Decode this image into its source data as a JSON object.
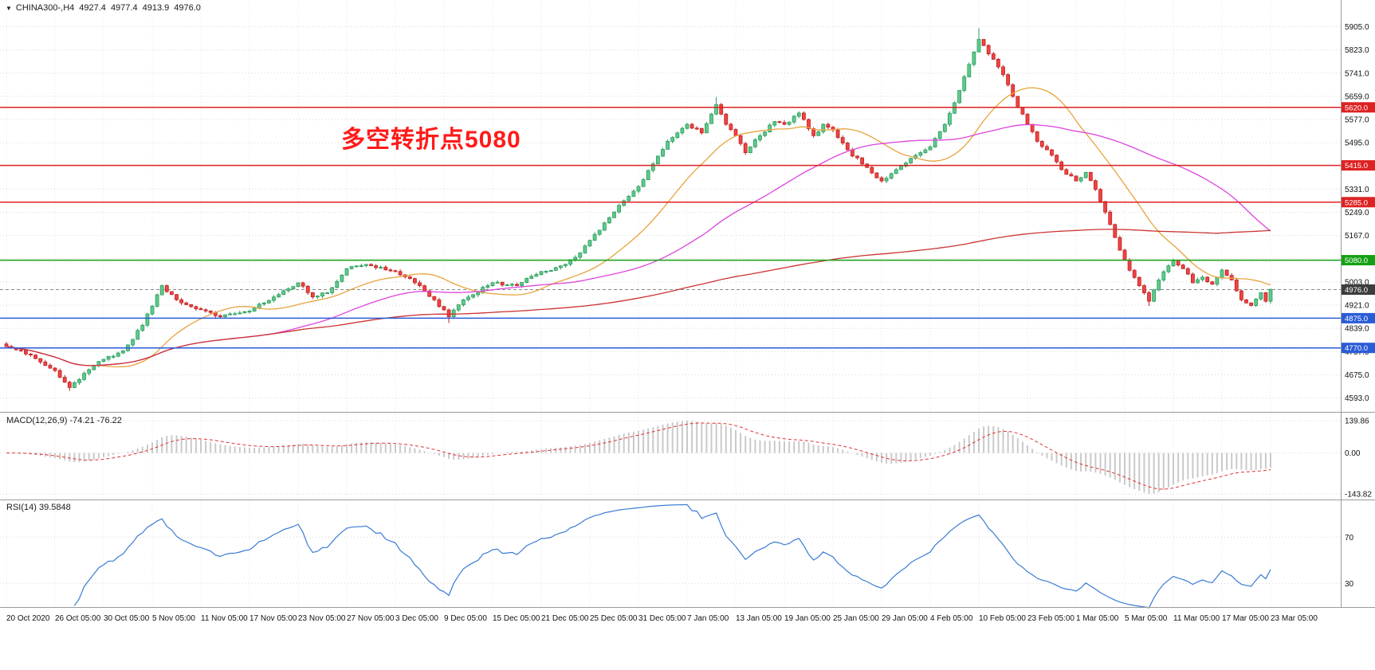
{
  "header": {
    "dropdown_icon": "▼",
    "symbol": "CHINA300-,H4",
    "open": "4927.4",
    "high": "4977.4",
    "low": "4913.9",
    "close": "4976.0"
  },
  "annotation": {
    "text": "多空转折点5080",
    "color": "#ff1a1a"
  },
  "chart_data": {
    "type": "candlestick",
    "symbol": "CHINA300-",
    "timeframe": "H4",
    "ohlc_current": {
      "open": 4927.4,
      "high": 4977.4,
      "low": 4913.9,
      "close": 4976.0
    },
    "y_axis": {
      "min": 4558,
      "max": 5960,
      "ticks": [
        "5905.0",
        "5823.0",
        "5741.0",
        "5659.0",
        "5577.0",
        "5495.0",
        "5413.0",
        "5331.0",
        "5249.0",
        "5167.0",
        "5085.0",
        "5003.0",
        "4921.0",
        "4839.0",
        "4757.0",
        "4675.0",
        "4593.0"
      ]
    },
    "x_axis": {
      "labels": [
        "20 Oct 2020",
        "26 Oct 05:00",
        "30 Oct 05:00",
        "5 Nov 05:00",
        "11 Nov 05:00",
        "17 Nov 05:00",
        "23 Nov 05:00",
        "27 Nov 05:00",
        "3 Dec 05:00",
        "9 Dec 05:00",
        "15 Dec 05:00",
        "21 Dec 05:00",
        "25 Dec 05:00",
        "31 Dec 05:00",
        "7 Jan 05:00",
        "13 Jan 05:00",
        "19 Jan 05:00",
        "25 Jan 05:00",
        "29 Jan 05:00",
        "4 Feb 05:00",
        "10 Feb 05:00",
        "23 Feb 05:00",
        "1 Mar 05:00",
        "5 Mar 05:00",
        "11 Mar 05:00",
        "17 Mar 05:00",
        "23 Mar 05:00"
      ]
    },
    "close_path": [
      [
        0,
        4775
      ],
      [
        5,
        4745
      ],
      [
        10,
        4690
      ],
      [
        13,
        4630
      ],
      [
        16,
        4680
      ],
      [
        20,
        4730
      ],
      [
        24,
        4760
      ],
      [
        28,
        4850
      ],
      [
        32,
        4990
      ],
      [
        35,
        4940
      ],
      [
        40,
        4905
      ],
      [
        44,
        4880
      ],
      [
        50,
        4900
      ],
      [
        55,
        4950
      ],
      [
        60,
        5000
      ],
      [
        63,
        4950
      ],
      [
        66,
        4965
      ],
      [
        70,
        5050
      ],
      [
        74,
        5065
      ],
      [
        80,
        5040
      ],
      [
        85,
        4990
      ],
      [
        88,
        4940
      ],
      [
        91,
        4880
      ],
      [
        94,
        4940
      ],
      [
        100,
        5000
      ],
      [
        105,
        4990
      ],
      [
        110,
        5040
      ],
      [
        114,
        5060
      ],
      [
        117,
        5090
      ],
      [
        120,
        5150
      ],
      [
        124,
        5230
      ],
      [
        127,
        5290
      ],
      [
        130,
        5340
      ],
      [
        133,
        5420
      ],
      [
        136,
        5500
      ],
      [
        140,
        5560
      ],
      [
        143,
        5530
      ],
      [
        146,
        5630
      ],
      [
        148,
        5560
      ],
      [
        150,
        5520
      ],
      [
        152,
        5460
      ],
      [
        155,
        5520
      ],
      [
        158,
        5570
      ],
      [
        160,
        5560
      ],
      [
        163,
        5600
      ],
      [
        166,
        5520
      ],
      [
        168,
        5560
      ],
      [
        170,
        5540
      ],
      [
        173,
        5470
      ],
      [
        176,
        5420
      ],
      [
        180,
        5360
      ],
      [
        183,
        5400
      ],
      [
        186,
        5440
      ],
      [
        190,
        5480
      ],
      [
        193,
        5560
      ],
      [
        196,
        5680
      ],
      [
        200,
        5860
      ],
      [
        203,
        5790
      ],
      [
        206,
        5700
      ],
      [
        208,
        5620
      ],
      [
        210,
        5560
      ],
      [
        212,
        5500
      ],
      [
        214,
        5470
      ],
      [
        217,
        5400
      ],
      [
        220,
        5360
      ],
      [
        222,
        5390
      ],
      [
        224,
        5330
      ],
      [
        226,
        5250
      ],
      [
        228,
        5160
      ],
      [
        230,
        5080
      ],
      [
        233,
        4990
      ],
      [
        235,
        4935
      ],
      [
        237,
        5010
      ],
      [
        239,
        5060
      ],
      [
        240,
        5080
      ],
      [
        242,
        5050
      ],
      [
        244,
        5000
      ],
      [
        246,
        5020
      ],
      [
        248,
        4995
      ],
      [
        250,
        5045
      ],
      [
        252,
        5010
      ],
      [
        254,
        4940
      ],
      [
        256,
        4920
      ],
      [
        258,
        4965
      ],
      [
        259,
        4935
      ],
      [
        260,
        4976
      ]
    ],
    "extremes": [
      {
        "i": 200,
        "high": 5900
      },
      {
        "i": 146,
        "high": 5657
      },
      {
        "i": 13,
        "low": 4618
      },
      {
        "i": 91,
        "low": 4858
      },
      {
        "i": 235,
        "low": 4918
      }
    ],
    "horizontal_lines": [
      {
        "value": 5620.0,
        "label": "5620.0",
        "color": "#dd2222"
      },
      {
        "value": 5415.0,
        "label": "5415.0",
        "color": "#dd2222"
      },
      {
        "value": 5285.0,
        "label": "5285.0",
        "color": "#dd2222"
      },
      {
        "value": 5080.0,
        "label": "5080.0",
        "color": "#14a014"
      },
      {
        "value": 4875.0,
        "label": "4875.0",
        "color": "#2a5bd7"
      },
      {
        "value": 4770.0,
        "label": "4770.0",
        "color": "#2a5bd7"
      }
    ],
    "current_price": {
      "value": 4976.0,
      "label": "4976.0",
      "tag_color": "#3d3d3d",
      "line_color": "#888888"
    },
    "candle_style": {
      "up_fill": "#5fc98c",
      "up_stroke": "#2a9d5c",
      "down_fill": "#ee4444",
      "down_stroke": "#c02020"
    },
    "moving_averages": [
      {
        "period": 20,
        "color": "#e8a33d"
      },
      {
        "period": 55,
        "color": "#dd44dd"
      },
      {
        "period": 250,
        "color": "#cc3333"
      }
    ],
    "indicators": [
      {
        "type": "macd",
        "label": "MACD(12,26,9) -74.21 -76.22",
        "params": [
          12,
          26,
          9
        ],
        "main_value": -74.21,
        "signal_value": -76.22,
        "ticks": [
          "139.86",
          "0.00",
          "-143.82"
        ],
        "histogram_color": "#c9c9c9",
        "signal_color": "#dd3333"
      },
      {
        "type": "rsi",
        "label": "RSI(14) 39.5848",
        "period": 14,
        "value": 39.5848,
        "levels": [
          "70",
          "30"
        ],
        "line_color": "#3a7bd5"
      }
    ]
  },
  "colors": {
    "background": "#ffffff",
    "grid": "#d6d6d6",
    "vgrid": "#e4e4e4",
    "frame": "#9b9b9b",
    "axis_text": "#111111"
  }
}
